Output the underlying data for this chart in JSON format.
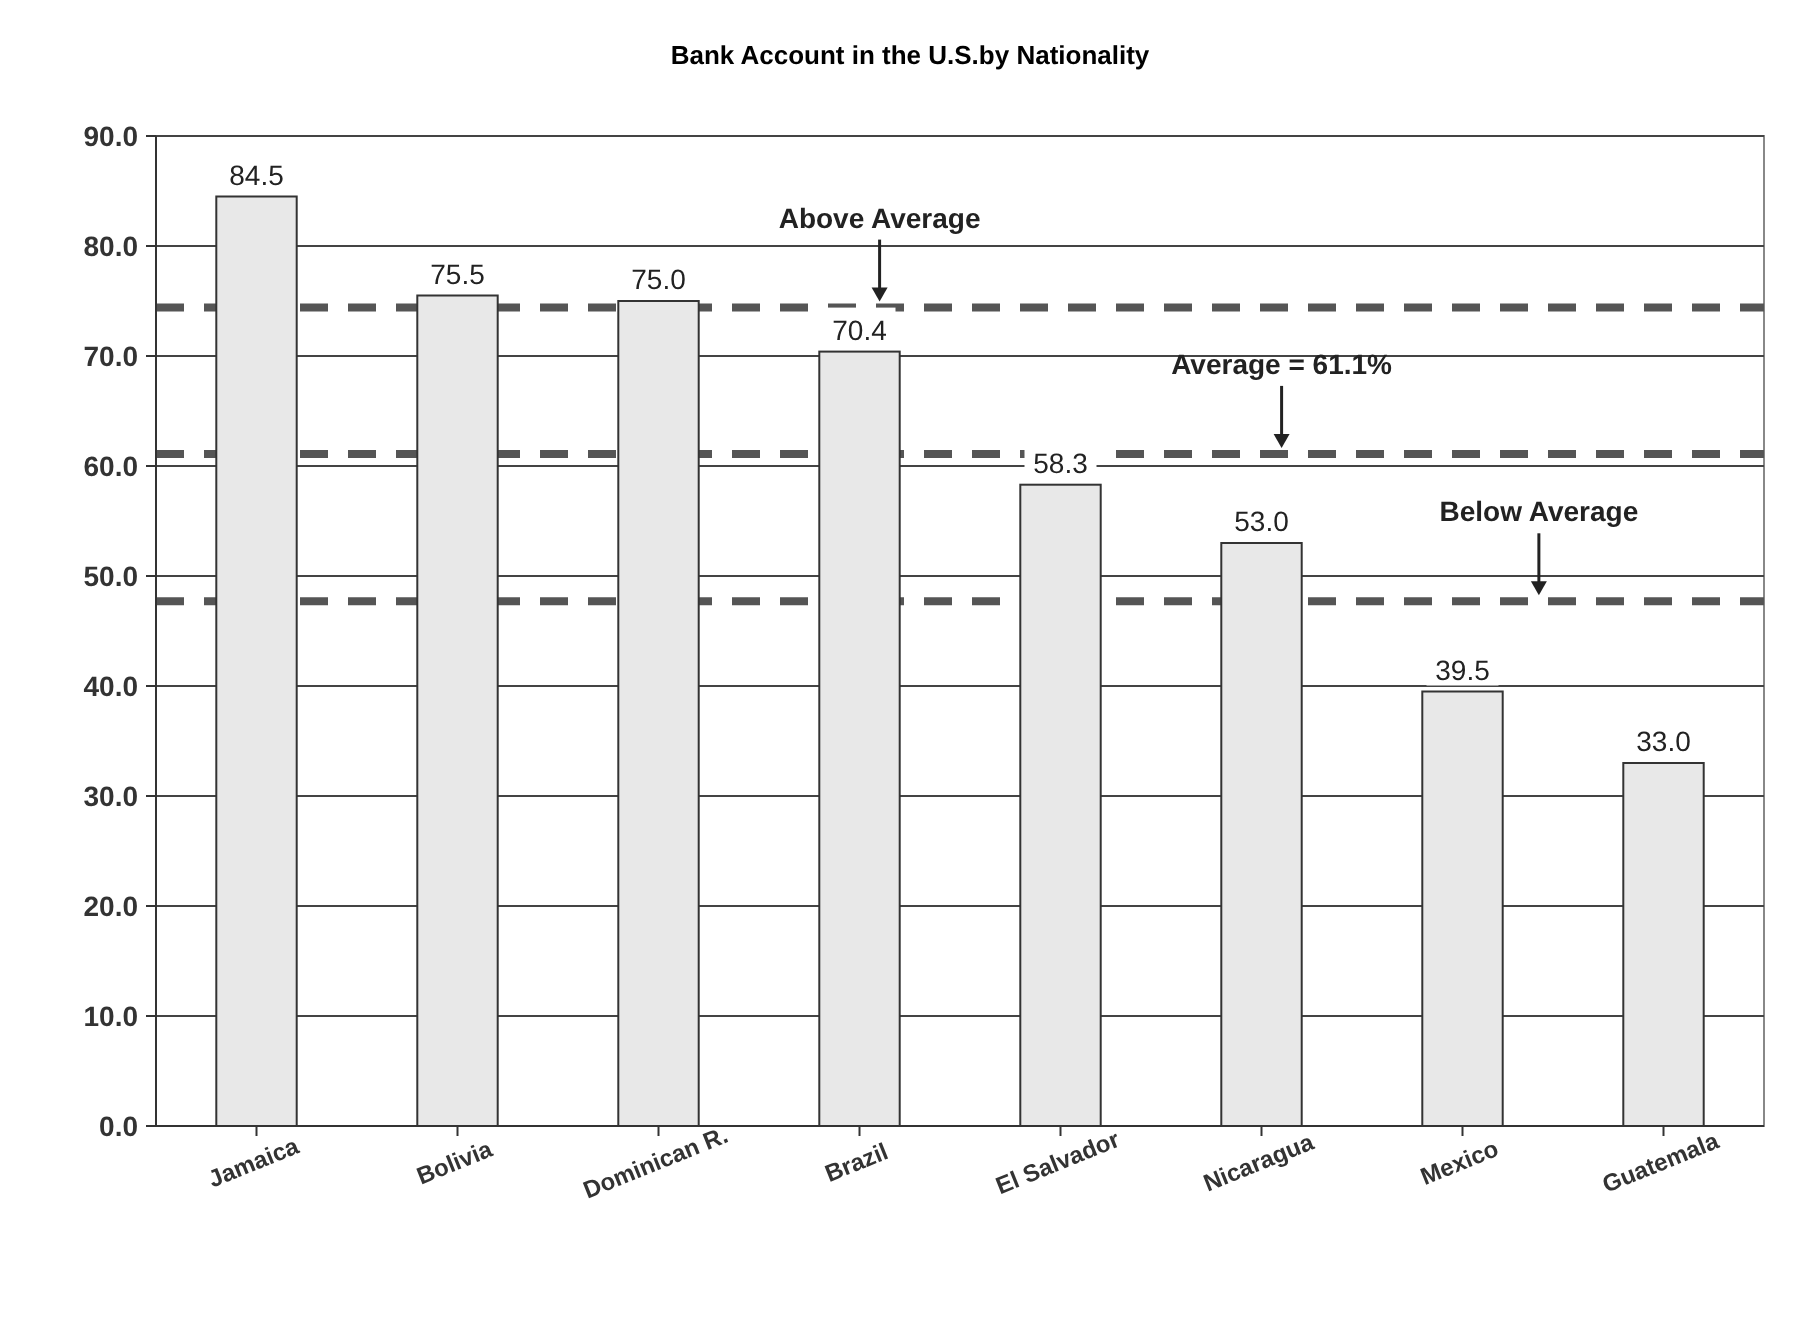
{
  "chart_data": {
    "type": "bar",
    "title": "Bank Account in the U.S.by Nationality",
    "categories": [
      "Jamaica",
      "Bolivia",
      "Dominican R.",
      "Brazil",
      "El Salvador",
      "Nicaragua",
      "Mexico",
      "Guatemala"
    ],
    "values": [
      84.5,
      75.5,
      75.0,
      70.4,
      58.3,
      53.0,
      39.5,
      33.0
    ],
    "value_labels": [
      "84.5",
      "75.5",
      "75.0",
      "70.4",
      "58.3",
      "53.0",
      "39.5",
      "33.0"
    ],
    "color": "#e8e8e8",
    "ylim": [
      0,
      90
    ],
    "yticks": [
      {
        "value": 0,
        "label": "0.0"
      },
      {
        "value": 10,
        "label": "10.0"
      },
      {
        "value": 20,
        "label": "20.0"
      },
      {
        "value": 30,
        "label": "30.0"
      },
      {
        "value": 40,
        "label": "40.0"
      },
      {
        "value": 50,
        "label": "50.0"
      },
      {
        "value": 60,
        "label": "60.0"
      },
      {
        "value": 70,
        "label": "70.0"
      },
      {
        "value": 80,
        "label": "80.0"
      },
      {
        "value": 90,
        "label": "90.0"
      }
    ],
    "grid": "y",
    "ref_lines": [
      {
        "axis": "y",
        "value": 74.4,
        "label": "Above Average",
        "color": "#555555",
        "line_style": "dashed"
      },
      {
        "axis": "y",
        "value": 61.1,
        "label": "Average = 61.1%",
        "color": "#555555",
        "line_style": "dashed"
      },
      {
        "axis": "y",
        "value": 47.7,
        "label": "Below Average",
        "color": "#555555",
        "line_style": "dashed"
      }
    ]
  }
}
